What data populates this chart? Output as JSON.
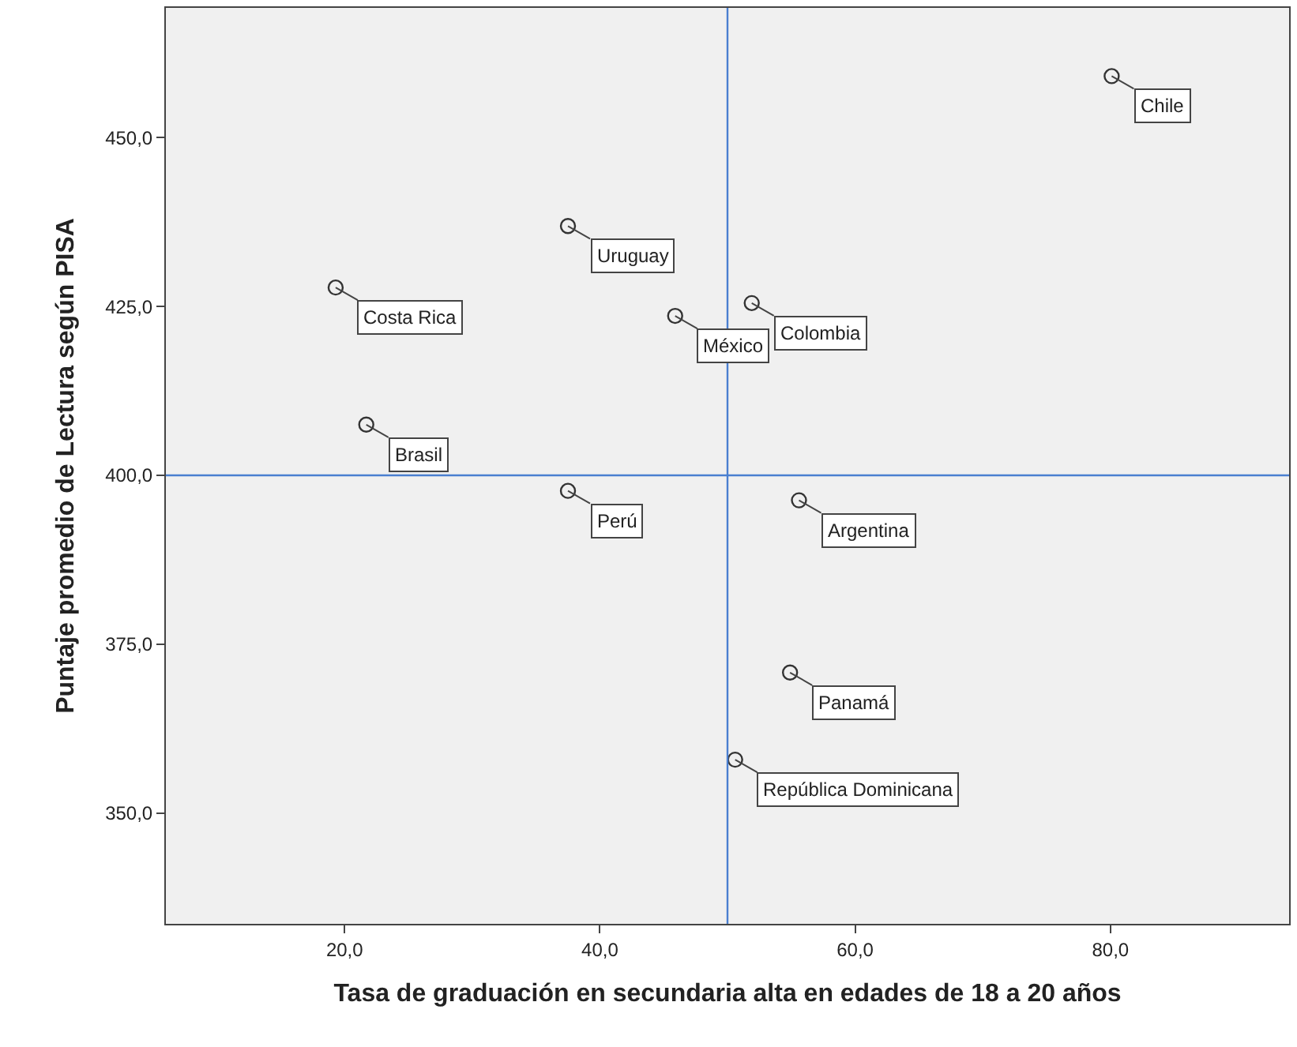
{
  "chart_data": {
    "type": "scatter",
    "xlabel": "Tasa de graduación en secundaria alta en edades de 18 a 20 años",
    "ylabel": "Puntaje promedio de Lectura según PISA",
    "x": [
      80.1,
      37.5,
      19.3,
      45.9,
      51.9,
      21.7,
      37.5,
      55.6,
      54.9,
      50.6
    ],
    "series": [
      {
        "color": "#333333",
        "values": [
          459.1,
          436.9,
          427.8,
          423.6,
          425.5,
          407.5,
          397.7,
          396.3,
          370.8,
          357.9
        ]
      }
    ],
    "marker": "circle",
    "xlim": [
      6,
      94
    ],
    "ylim": [
      333.6,
      469.2
    ],
    "xticks": [
      {
        "value": 20,
        "label": "20,0"
      },
      {
        "value": 40,
        "label": "40,0"
      },
      {
        "value": 60,
        "label": "60,0"
      },
      {
        "value": 80,
        "label": "80,0"
      }
    ],
    "yticks": [
      {
        "value": 350,
        "label": "350,0"
      },
      {
        "value": 375,
        "label": "375,0"
      },
      {
        "value": 400,
        "label": "400,0"
      },
      {
        "value": 425,
        "label": "425,0"
      },
      {
        "value": 450,
        "label": "450,0"
      }
    ],
    "ref_lines": [
      {
        "axis": "x",
        "value": 50,
        "color": "#4a7fd0"
      },
      {
        "axis": "y",
        "value": 400,
        "color": "#4a7fd0"
      }
    ],
    "annotations": [
      {
        "text": "Chile",
        "x": 80.1,
        "y": 459.1
      },
      {
        "text": "Uruguay",
        "x": 37.5,
        "y": 436.9
      },
      {
        "text": "Costa Rica",
        "x": 19.3,
        "y": 427.8
      },
      {
        "text": "México",
        "x": 45.9,
        "y": 423.6
      },
      {
        "text": "Colombia",
        "x": 51.9,
        "y": 425.5
      },
      {
        "text": "Brasil",
        "x": 21.7,
        "y": 407.5
      },
      {
        "text": "Perú",
        "x": 37.5,
        "y": 397.7
      },
      {
        "text": "Argentina",
        "x": 55.6,
        "y": 396.3
      },
      {
        "text": "Panamá",
        "x": 54.9,
        "y": 370.8
      },
      {
        "text": "República Dominicana",
        "x": 50.6,
        "y": 357.9
      }
    ],
    "grid": false
  }
}
